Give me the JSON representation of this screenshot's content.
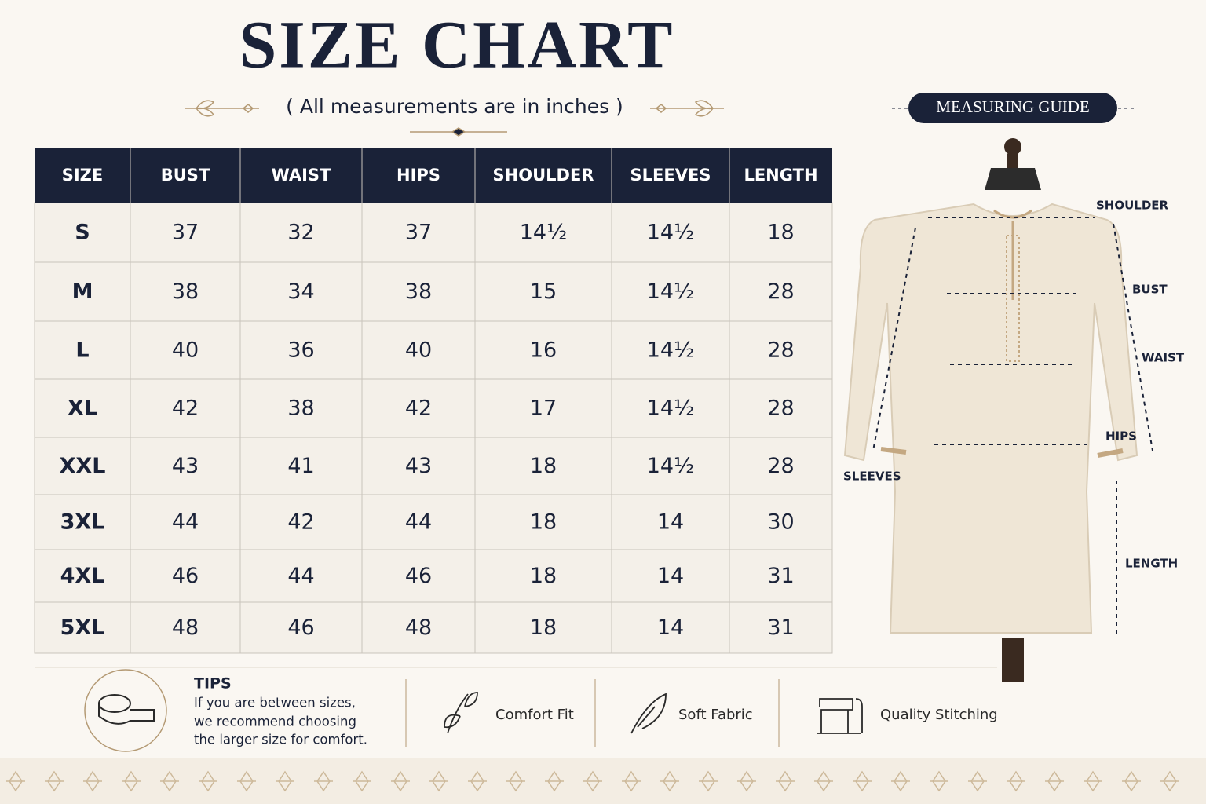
{
  "title": "SIZE CHART",
  "subtitle": "( All measurements are in inches )",
  "table": {
    "headers": [
      "SIZE",
      "BUST",
      "WAIST",
      "HIPS",
      "SHOULDER",
      "SLEEVES",
      "LENGTH"
    ],
    "rows": [
      [
        "S",
        "37",
        "32",
        "37",
        "14½",
        "14½",
        "18"
      ],
      [
        "M",
        "38",
        "34",
        "38",
        "15",
        "14½",
        "28"
      ],
      [
        "L",
        "40",
        "36",
        "40",
        "16",
        "14½",
        "28"
      ],
      [
        "XL",
        "42",
        "38",
        "42",
        "17",
        "14½",
        "28"
      ],
      [
        "XXL",
        "43",
        "41",
        "43",
        "18",
        "14½",
        "28"
      ],
      [
        "3XL",
        "44",
        "42",
        "44",
        "18",
        "14",
        "30"
      ],
      [
        "4XL",
        "46",
        "44",
        "46",
        "18",
        "14",
        "31"
      ],
      [
        "5XL",
        "48",
        "46",
        "48",
        "18",
        "14",
        "31"
      ]
    ]
  },
  "guide": {
    "title": "MEASURING GUIDE",
    "labels": {
      "shoulder": "SHOULDER",
      "bust": "BUST",
      "waist": "WAIST",
      "hips": "HIPS",
      "sleeves": "SLEEVES",
      "length": "LENGTH"
    }
  },
  "tips": {
    "title": "TIPS",
    "lines": [
      "If you are between sizes,",
      "we recommend choosing",
      "the larger size for comfort."
    ]
  },
  "features": [
    "Comfort Fit",
    "Soft Fabric",
    "Quality Stitching"
  ]
}
